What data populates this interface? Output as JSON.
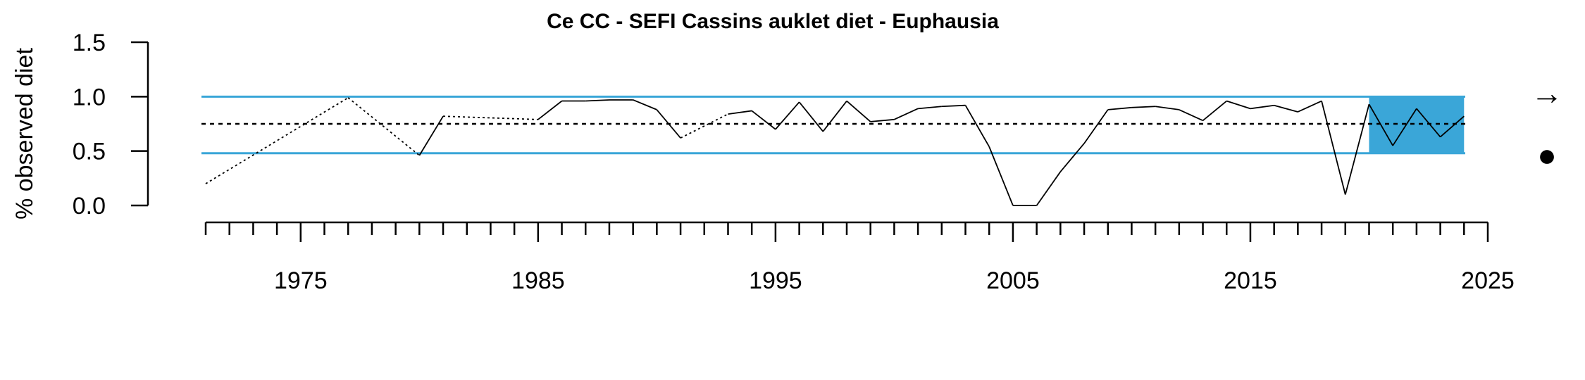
{
  "chart_data": {
    "type": "line",
    "title": "Ce CC - SEFI Cassins auklet diet - Euphausia",
    "xlabel": "",
    "ylabel": "% observed diet",
    "xlim": [
      1971,
      2025
    ],
    "ylim": [
      0,
      1.5
    ],
    "x_tick_labels": [
      "1975",
      "1985",
      "1995",
      "2005",
      "2015",
      "2025"
    ],
    "y_tick_labels": [
      "0.0",
      "0.5",
      "1.0",
      "1.5"
    ],
    "mean": 0.75,
    "upper_band": 1.0,
    "lower_band": 0.48,
    "recent_window": [
      2020,
      2024
    ],
    "trend_indicator": "→",
    "mean_indicator": "●",
    "colors": {
      "band": "#3aa6d8",
      "recent_fill": "#3aa6d8",
      "line": "#000000"
    },
    "grid": false,
    "series": [
      {
        "x": [
          1971,
          1977,
          1980,
          1981,
          1985,
          1986,
          1987,
          1988,
          1989,
          1990,
          1991,
          1993,
          1994,
          1995,
          1996,
          1997,
          1998,
          1999,
          2000,
          2001,
          2002,
          2003,
          2004,
          2005,
          2006,
          2007,
          2008,
          2009,
          2010,
          2011,
          2012,
          2013,
          2014,
          2015,
          2016,
          2017,
          2018,
          2019,
          2020,
          2021,
          2022,
          2023,
          2024
        ],
        "y": [
          0.2,
          0.99,
          0.46,
          0.82,
          0.79,
          0.96,
          0.96,
          0.97,
          0.97,
          0.88,
          0.62,
          0.84,
          0.87,
          0.7,
          0.95,
          0.68,
          0.96,
          0.77,
          0.79,
          0.89,
          0.91,
          0.92,
          0.54,
          0.0,
          0.0,
          0.31,
          0.57,
          0.88,
          0.9,
          0.91,
          0.88,
          0.78,
          0.96,
          0.89,
          0.92,
          0.86,
          0.96,
          0.1,
          0.93,
          0.55,
          0.89,
          0.63,
          0.82
        ]
      }
    ]
  }
}
